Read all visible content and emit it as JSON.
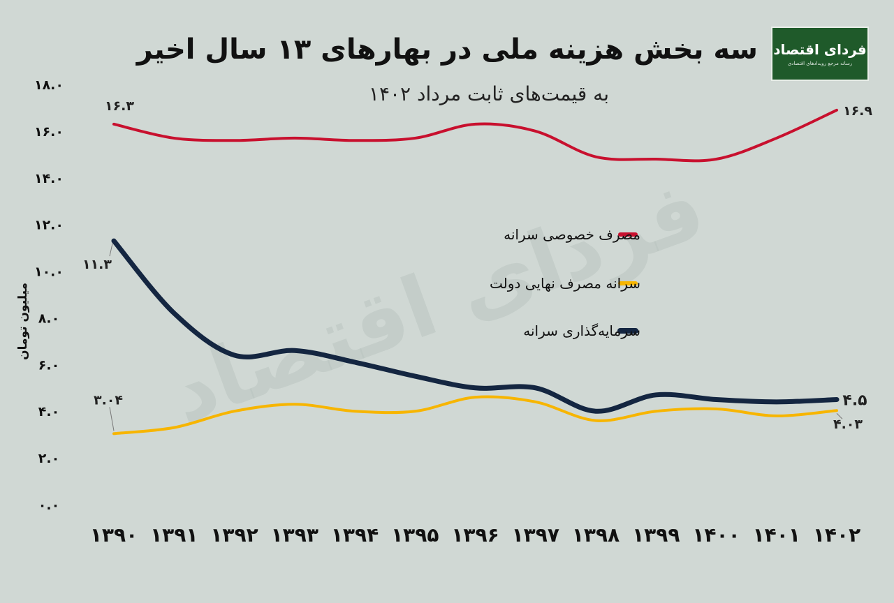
{
  "chart_data": {
    "type": "line",
    "title": "سه بخش هزینه ملی در بهارهای ۱۳ سال اخیر",
    "subtitle": "به قیمت‌های ثابت مرداد ۱۴۰۲",
    "ylabel": "میلیون تومان",
    "xlabel": "",
    "ylim": [
      0,
      18
    ],
    "yticks": [
      "۰.۰",
      "۲.۰",
      "۴.۰",
      "۶.۰",
      "۸.۰",
      "۱۰.۰",
      "۱۲.۰",
      "۱۴.۰",
      "۱۶.۰",
      "۱۸.۰"
    ],
    "ytick_values": [
      0,
      2,
      4,
      6,
      8,
      10,
      12,
      14,
      16,
      18
    ],
    "categories": [
      "۱۳۹۰",
      "۱۳۹۱",
      "۱۳۹۲",
      "۱۳۹۳",
      "۱۳۹۴",
      "۱۳۹۵",
      "۱۳۹۶",
      "۱۳۹۷",
      "۱۳۹۸",
      "۱۳۹۹",
      "۱۴۰۰",
      "۱۴۰۱",
      "۱۴۰۲"
    ],
    "grid": false,
    "legend_position": "right",
    "series": [
      {
        "name": "مصرف خصوصی سرانه",
        "color": "#c8102e",
        "values": [
          16.3,
          15.7,
          15.6,
          15.7,
          15.6,
          15.7,
          16.3,
          16.0,
          14.9,
          14.8,
          14.8,
          15.7,
          16.9
        ],
        "start_label": "۱۶.۳",
        "end_label": "۱۶.۹"
      },
      {
        "name": "سرانه مصرف نهایی دولت",
        "color": "#f7b500",
        "values": [
          3.04,
          3.3,
          4.0,
          4.3,
          4.0,
          4.0,
          4.6,
          4.4,
          3.6,
          4.0,
          4.1,
          3.8,
          4.03
        ],
        "start_label": "۳.۰۴",
        "end_label": "۴.۰۳"
      },
      {
        "name": "سرمایه‌گذاری سرانه",
        "color": "#142641",
        "values": [
          11.3,
          8.2,
          6.4,
          6.6,
          6.1,
          5.5,
          5.0,
          5.0,
          4.0,
          4.7,
          4.5,
          4.4,
          4.5
        ],
        "start_label": "۱۱.۳",
        "end_label": "۴.۵"
      }
    ]
  },
  "header": {
    "logo_text": "فردای اقتصاد",
    "logo_tagline": "رسانه مرجع رویدادهای اقتصادی",
    "logo_color": "#1f5a2a"
  },
  "watermark": "فردای اقتصاد"
}
